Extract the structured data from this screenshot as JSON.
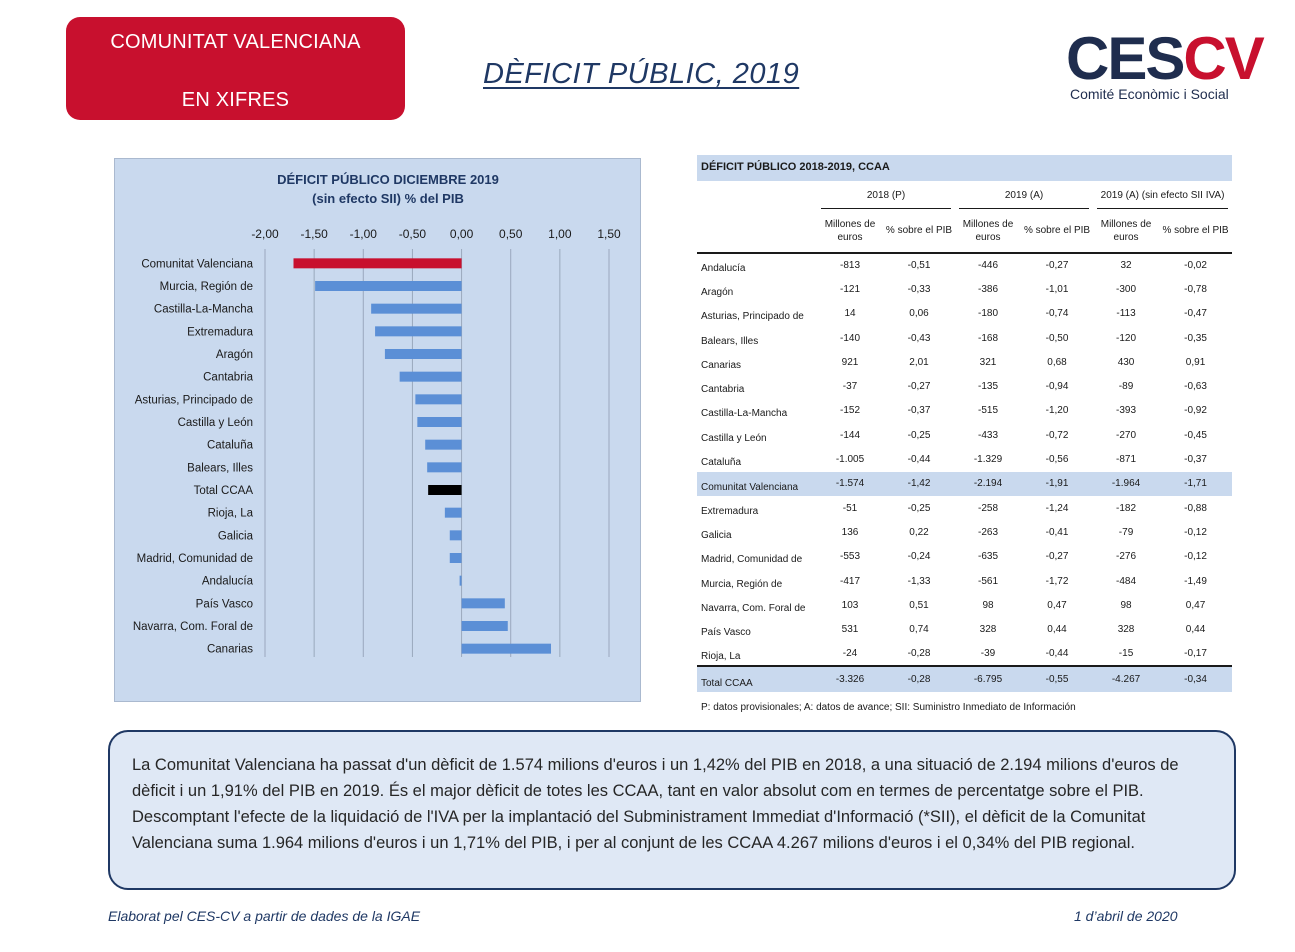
{
  "header": {
    "badge_line1": "COMUNITAT VALENCIANA",
    "badge_line2": "EN XIFRES",
    "title": "DÈFICIT PÚBLIC, 2019",
    "logo_ces": "CES",
    "logo_cv": "CV",
    "logo_subtitle": "Comité Econòmic i Social"
  },
  "colors": {
    "badge": "#c8102e",
    "bar_default": "#5b8fd6",
    "bar_highlight": "#c8102e",
    "bar_total": "#000000",
    "panel_bg": "#c9d9ee"
  },
  "chart_data": {
    "type": "bar",
    "orientation": "horizontal",
    "title": "DÉFICIT PÚBLICO DICIEMBRE 2019",
    "subtitle": "(sin efecto SII) % del PIB",
    "xlim": [
      -2.0,
      1.5
    ],
    "ticks": [
      "-2,00",
      "-1,50",
      "-1,00",
      "-0,50",
      "0,00",
      "0,50",
      "1,00",
      "1,50"
    ],
    "tick_values": [
      -2.0,
      -1.5,
      -1.0,
      -0.5,
      0.0,
      0.5,
      1.0,
      1.5
    ],
    "grid": true,
    "categories": [
      "Comunitat Valenciana",
      "Murcia, Región de",
      "Castilla-La-Mancha",
      "Extremadura",
      "Aragón",
      "Cantabria",
      "Asturias, Principado de",
      "Castilla y León",
      "Cataluña",
      "Balears, Illes",
      "Total CCAA",
      "Rioja, La",
      "Galicia",
      "Madrid, Comunidad de",
      "Andalucía",
      "País Vasco",
      "Navarra, Com. Foral de",
      "Canarias"
    ],
    "values": [
      -1.71,
      -1.49,
      -0.92,
      -0.88,
      -0.78,
      -0.63,
      -0.47,
      -0.45,
      -0.37,
      -0.35,
      -0.34,
      -0.17,
      -0.12,
      -0.12,
      -0.02,
      0.44,
      0.47,
      0.91
    ],
    "highlight": {
      "Comunitat Valenciana": "bar_highlight",
      "Total CCAA": "bar_total"
    }
  },
  "table": {
    "title": "DÉFICIT PÚBLICO 2018-2019, CCAA",
    "groups": [
      "2018 (P)",
      "2019 (A)",
      "2019 (A) (sin efecto SII IVA)"
    ],
    "col_millones": "Millones de euros",
    "col_pib": "% sobre el PIB",
    "rows": [
      {
        "name": "Andalucía",
        "v": [
          "-813",
          "-0,51",
          "-446",
          "-0,27",
          "32",
          "-0,02"
        ]
      },
      {
        "name": "Aragón",
        "v": [
          "-121",
          "-0,33",
          "-386",
          "-1,01",
          "-300",
          "-0,78"
        ]
      },
      {
        "name": "Asturias, Principado de",
        "v": [
          "14",
          "0,06",
          "-180",
          "-0,74",
          "-113",
          "-0,47"
        ]
      },
      {
        "name": "Balears, Illes",
        "v": [
          "-140",
          "-0,43",
          "-168",
          "-0,50",
          "-120",
          "-0,35"
        ]
      },
      {
        "name": "Canarias",
        "v": [
          "921",
          "2,01",
          "321",
          "0,68",
          "430",
          "0,91"
        ]
      },
      {
        "name": "Cantabria",
        "v": [
          "-37",
          "-0,27",
          "-135",
          "-0,94",
          "-89",
          "-0,63"
        ]
      },
      {
        "name": "Castilla-La-Mancha",
        "v": [
          "-152",
          "-0,37",
          "-515",
          "-1,20",
          "-393",
          "-0,92"
        ]
      },
      {
        "name": "Castilla y León",
        "v": [
          "-144",
          "-0,25",
          "-433",
          "-0,72",
          "-270",
          "-0,45"
        ]
      },
      {
        "name": "Cataluña",
        "v": [
          "-1.005",
          "-0,44",
          "-1.329",
          "-0,56",
          "-871",
          "-0,37"
        ]
      },
      {
        "name": "Comunitat Valenciana",
        "v": [
          "-1.574",
          "-1,42",
          "-2.194",
          "-1,91",
          "-1.964",
          "-1,71"
        ]
      },
      {
        "name": "Extremadura",
        "v": [
          "-51",
          "-0,25",
          "-258",
          "-1,24",
          "-182",
          "-0,88"
        ]
      },
      {
        "name": "Galicia",
        "v": [
          "136",
          "0,22",
          "-263",
          "-0,41",
          "-79",
          "-0,12"
        ]
      },
      {
        "name": "Madrid, Comunidad de",
        "v": [
          "-553",
          "-0,24",
          "-635",
          "-0,27",
          "-276",
          "-0,12"
        ]
      },
      {
        "name": "Murcia, Región de",
        "v": [
          "-417",
          "-1,33",
          "-561",
          "-1,72",
          "-484",
          "-1,49"
        ]
      },
      {
        "name": "Navarra, Com. Foral de",
        "v": [
          "103",
          "0,51",
          "98",
          "0,47",
          "98",
          "0,47"
        ]
      },
      {
        "name": "País Vasco",
        "v": [
          "531",
          "0,74",
          "328",
          "0,44",
          "328",
          "0,44"
        ]
      },
      {
        "name": "Rioja, La",
        "v": [
          "-24",
          "-0,28",
          "-39",
          "-0,44",
          "-15",
          "-0,17"
        ]
      }
    ],
    "highlight_row": "Comunitat Valenciana",
    "total": {
      "name": "Total CCAA",
      "v": [
        "-3.326",
        "-0,28",
        "-6.795",
        "-0,55",
        "-4.267",
        "-0,34"
      ]
    },
    "footnote": "P: datos provisionales; A: datos de avance; SII: Suministro Inmediato de Información"
  },
  "summary": "La Comunitat Valenciana ha passat d'un dèficit de 1.574 milions d'euros i un 1,42% del PIB en 2018, a una situació de 2.194 milions d'euros de dèficit i un 1,91% del PIB en 2019. És el major dèficit de totes les CCAA, tant en valor absolut com en termes de percentatge sobre el PIB. Descomptant l'efecte de la liquidació de l'IVA per la implantació del Subministrament Immediat d'Informació (*SII), el dèficit de la Comunitat Valenciana suma 1.964 milions d'euros i un 1,71% del PIB, i per al conjunt de les CCAA 4.267 milions d'euros i el 0,34% del PIB regional.",
  "footer": {
    "source": "Elaborat pel CES-CV a partir de dades de la IGAE",
    "date": "1 d’abril de 2020"
  }
}
